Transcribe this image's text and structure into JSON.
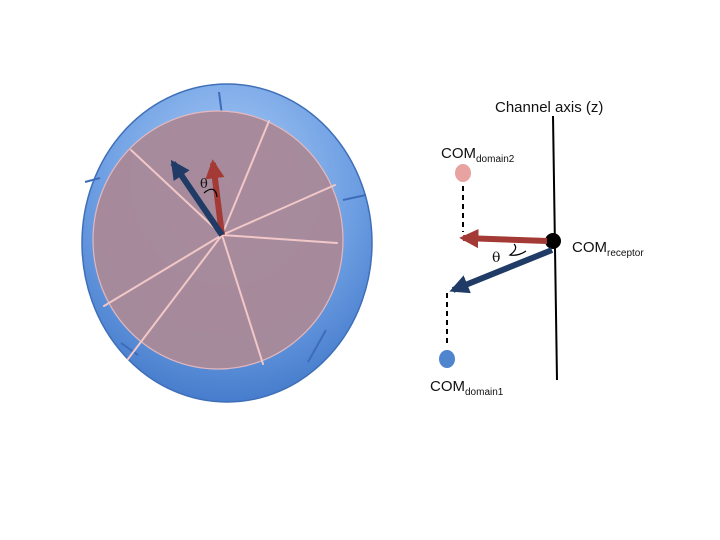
{
  "diagram": {
    "theta_symbol": "θ",
    "channel_axis_label": "Channel axis (z)",
    "com_receptor": {
      "main": "COM",
      "sub": "receptor"
    },
    "com_domain2": {
      "main": "COM",
      "sub": "domain2"
    },
    "com_domain1": {
      "main": "COM",
      "sub": "domain1"
    }
  },
  "colors": {
    "ring_outer": "#5b8fd8",
    "ring_light": "#9cc0f3",
    "disc_fill": "#a88a9a",
    "disc_line": "#f2c7c7",
    "red_arrow": "#a43a35",
    "blue_arrow": "#1f3b66",
    "dot_pink": "#e8a2a0",
    "dot_blue": "#4f84cf",
    "black": "#000000"
  }
}
